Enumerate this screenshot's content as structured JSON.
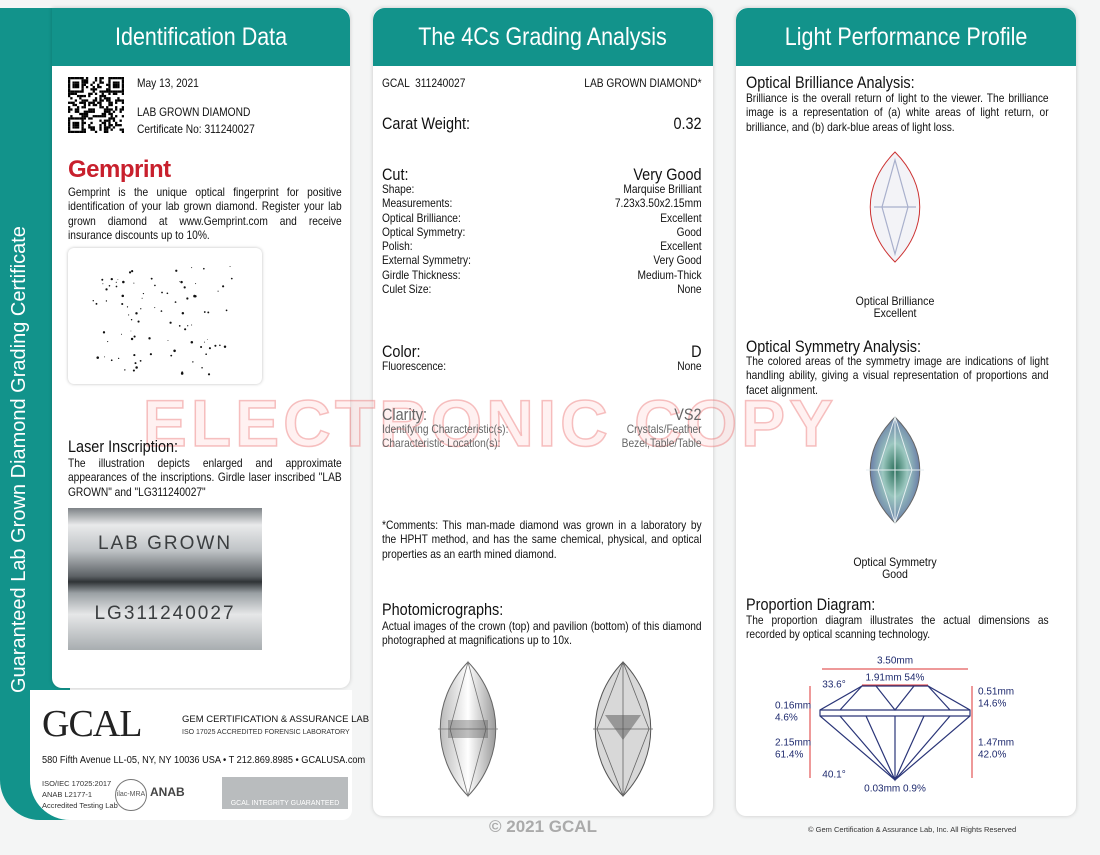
{
  "side_title": "Guaranteed Lab Grown Diamond Grading Certificate",
  "watermark": "ELECTRONIC COPY",
  "copyright": "© 2021 GCAL",
  "identification": {
    "title": "Identification Data",
    "date": "May 13, 2021",
    "product": "LAB GROWN DIAMOND",
    "certificate": "Certificate No: 311240027",
    "gemprint_logo": "Gemprint",
    "gemprint_text": "Gemprint is the unique optical fingerprint for positive identification of your lab grown diamond. Register your lab grown diamond at www.Gemprint.com and receive insurance discounts up to 10%.",
    "laser_title": "Laser Inscription:",
    "laser_text": "The illustration depicts enlarged and approximate appearances of the inscriptions. Girdle laser inscribed \"LAB GROWN\" and \"LG311240027\"",
    "inscriptions": [
      "LAB GROWN",
      "LG311240027"
    ],
    "lab_logo": "GCAL",
    "lab_name": "GEM CERTIFICATION & ASSURANCE LAB",
    "lab_accreditation": "ISO 17025 ACCREDITED FORENSIC LABORATORY",
    "address": "580 Fifth Avenue LL-05, NY, NY 10036 USA • T 212.869.8985 • GCALUSA.com",
    "accreditation": [
      "ISO/IEC 17025:2017",
      "ANAB L2177-1",
      "Accredited Testing Lab"
    ],
    "badges": [
      "ilac-MRA",
      "ANAB",
      "GCAL INTEGRITY GUARANTEED"
    ]
  },
  "grading": {
    "title": "The 4Cs Grading Analysis",
    "report": "GCAL  311240027",
    "product": "LAB GROWN DIAMOND*",
    "carat": {
      "label": "Carat Weight:",
      "value": "0.32"
    },
    "cut": {
      "label": "Cut:",
      "value": "Very Good"
    },
    "cut_details": [
      {
        "label": "Shape:",
        "value": "Marquise Brilliant"
      },
      {
        "label": "Measurements:",
        "value": "7.23x3.50x2.15mm"
      },
      {
        "label": "Optical Brilliance:",
        "value": "Excellent"
      },
      {
        "label": "Optical Symmetry:",
        "value": "Good"
      },
      {
        "label": "Polish:",
        "value": "Excellent"
      },
      {
        "label": "External Symmetry:",
        "value": "Very Good"
      },
      {
        "label": "Girdle Thickness:",
        "value": "Medium-Thick"
      },
      {
        "label": "Culet Size:",
        "value": "None"
      }
    ],
    "color": {
      "label": "Color:",
      "value": "D"
    },
    "fluorescence": {
      "label": "Fluorescence:",
      "value": "None"
    },
    "clarity": {
      "label": "Clarity:",
      "value": "VS2"
    },
    "clarity_details": [
      {
        "label": "Identifying Characteristic(s):",
        "value": "Crystals/Feather"
      },
      {
        "label": "Characteristic Location(s):",
        "value": "Bezel,Table/Table"
      }
    ],
    "comments": "*Comments: This man-made diamond was grown in a laboratory by the HPHT method, and has the same chemical, physical, and optical properties as an earth mined diamond.",
    "photo_title": "Photomicrographs:",
    "photo_text": "Actual images of the crown (top) and pavilion (bottom) of this diamond photographed at magnifications up to 10x."
  },
  "light": {
    "title": "Light Performance Profile",
    "brilliance_title": "Optical Brilliance Analysis:",
    "brilliance_text": "Brilliance is the overall return of light to the viewer. The brilliance image is a representation of (a) white areas of light return, or brilliance, and (b) dark-blue areas of light loss.",
    "brilliance_caption": [
      "Optical Brilliance",
      "Excellent"
    ],
    "symmetry_title": "Optical Symmetry Analysis:",
    "symmetry_text": "The colored areas of the symmetry image are indications of light handling ability, giving a visual representation of proportions and facet alignment.",
    "symmetry_caption": [
      "Optical Symmetry",
      "Good"
    ],
    "proportion_title": "Proportion Diagram:",
    "proportion_text": "The proportion diagram illustrates the actual dimensions as recorded by optical scanning technology.",
    "proportions": {
      "total_width": "3.50mm",
      "table": "1.91mm 54%",
      "crown_angle": "33.6°",
      "girdle_mm": "0.16mm",
      "girdle_pct": "4.6%",
      "depth_mm": "2.15mm",
      "depth_pct": "61.4%",
      "pavilion_angle": "40.1°",
      "culet": "0.03mm 0.9%",
      "crown_mm": "0.51mm",
      "crown_pct": "14.6%",
      "pavilion_mm": "1.47mm",
      "pavilion_pct": "42.0%"
    },
    "footer": "© Gem Certification & Assurance Lab, Inc. All Rights Reserved"
  }
}
